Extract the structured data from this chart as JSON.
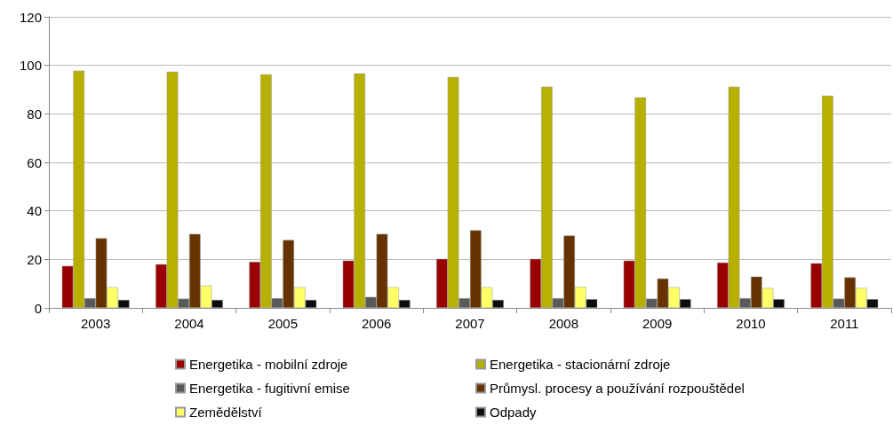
{
  "chart_data": {
    "type": "bar",
    "categories": [
      "2003",
      "2004",
      "2005",
      "2006",
      "2007",
      "2008",
      "2009",
      "2010",
      "2011"
    ],
    "series": [
      {
        "name": "Energetika - mobilní zdroje",
        "color": "#990000",
        "values": [
          17.3,
          18,
          19,
          19.5,
          20.2,
          20.2,
          19.5,
          18.7,
          18.4
        ]
      },
      {
        "name": "Energetika - stacionární zdroje",
        "color": "#b8b000",
        "values": [
          97.8,
          97.4,
          96.3,
          96.7,
          95.2,
          91.2,
          86.8,
          91.2,
          87.5
        ]
      },
      {
        "name": "Energetika - fugitivní emise",
        "color": "#595959",
        "values": [
          4,
          3.8,
          4,
          4.5,
          4,
          4,
          3.8,
          4,
          3.8
        ]
      },
      {
        "name": "Průmysl. procesy a používání rozpouštědel",
        "color": "#663300",
        "values": [
          28.7,
          30.5,
          28,
          30.5,
          32,
          29.8,
          12.1,
          12.9,
          12.6
        ]
      },
      {
        "name": "Zemědělství",
        "color": "#ffff66",
        "values": [
          8.5,
          9.2,
          8.5,
          8.5,
          8.5,
          8.7,
          8.5,
          8.2,
          8.2
        ]
      },
      {
        "name": "Odpady",
        "color": "#0d0d0d",
        "values": [
          3.3,
          3.3,
          3.3,
          3.3,
          3.3,
          3.6,
          3.6,
          3.6,
          3.6
        ]
      }
    ],
    "ylim": [
      0,
      120
    ],
    "yticks": [
      0,
      20,
      40,
      60,
      80,
      100,
      120
    ],
    "grid": "y",
    "legend": "bottom"
  }
}
